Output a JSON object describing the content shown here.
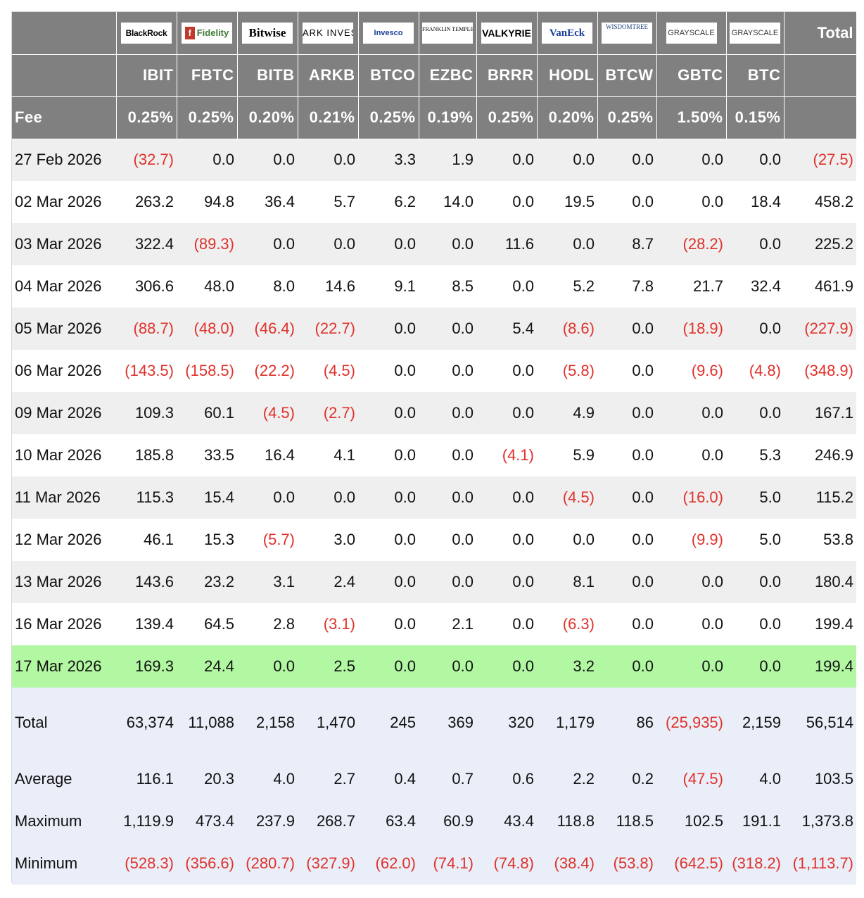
{
  "columns": [
    "IBIT",
    "FBTC",
    "BITB",
    "ARKB",
    "BTCO",
    "EZBC",
    "BRRR",
    "HODL",
    "BTCW",
    "GBTC",
    "BTC"
  ],
  "header": {
    "total_label": "Total",
    "fee_label": "Fee",
    "logos": [
      {
        "text": "BlackRock",
        "icon": "blackrock-logo"
      },
      {
        "text": "Fidelity",
        "icon": "fidelity-logo"
      },
      {
        "text": "Bitwise",
        "icon": "bitwise-logo"
      },
      {
        "text": "ARK INVEST",
        "icon": "ark-invest-logo"
      },
      {
        "text": "Invesco",
        "icon": "invesco-logo"
      },
      {
        "text": "FRANKLIN TEMPLETON",
        "icon": "franklin-templeton-logo"
      },
      {
        "text": "VALKYRIE",
        "icon": "valkyrie-logo"
      },
      {
        "text": "VanEck",
        "icon": "vaneck-logo"
      },
      {
        "text": "WISDOMTREE",
        "icon": "wisdomtree-logo"
      },
      {
        "text": "GRAYSCALE",
        "icon": "grayscale-logo"
      },
      {
        "text": "GRAYSCALE",
        "icon": "grayscale-logo"
      }
    ],
    "fees": [
      "0.25%",
      "0.25%",
      "0.20%",
      "0.21%",
      "0.25%",
      "0.19%",
      "0.25%",
      "0.20%",
      "0.25%",
      "1.50%",
      "0.15%"
    ]
  },
  "rows": [
    {
      "date": "27 Feb 2026",
      "values": [
        "(32.7)",
        "0.0",
        "0.0",
        "0.0",
        "3.3",
        "1.9",
        "0.0",
        "0.0",
        "0.0",
        "0.0",
        "0.0"
      ],
      "total": "(27.5)"
    },
    {
      "date": "02 Mar 2026",
      "values": [
        "263.2",
        "94.8",
        "36.4",
        "5.7",
        "6.2",
        "14.0",
        "0.0",
        "19.5",
        "0.0",
        "0.0",
        "18.4"
      ],
      "total": "458.2"
    },
    {
      "date": "03 Mar 2026",
      "values": [
        "322.4",
        "(89.3)",
        "0.0",
        "0.0",
        "0.0",
        "0.0",
        "11.6",
        "0.0",
        "8.7",
        "(28.2)",
        "0.0"
      ],
      "total": "225.2"
    },
    {
      "date": "04 Mar 2026",
      "values": [
        "306.6",
        "48.0",
        "8.0",
        "14.6",
        "9.1",
        "8.5",
        "0.0",
        "5.2",
        "7.8",
        "21.7",
        "32.4"
      ],
      "total": "461.9"
    },
    {
      "date": "05 Mar 2026",
      "values": [
        "(88.7)",
        "(48.0)",
        "(46.4)",
        "(22.7)",
        "0.0",
        "0.0",
        "5.4",
        "(8.6)",
        "0.0",
        "(18.9)",
        "0.0"
      ],
      "total": "(227.9)"
    },
    {
      "date": "06 Mar 2026",
      "values": [
        "(143.5)",
        "(158.5)",
        "(22.2)",
        "(4.5)",
        "0.0",
        "0.0",
        "0.0",
        "(5.8)",
        "0.0",
        "(9.6)",
        "(4.8)"
      ],
      "total": "(348.9)"
    },
    {
      "date": "09 Mar 2026",
      "values": [
        "109.3",
        "60.1",
        "(4.5)",
        "(2.7)",
        "0.0",
        "0.0",
        "0.0",
        "4.9",
        "0.0",
        "0.0",
        "0.0"
      ],
      "total": "167.1"
    },
    {
      "date": "10 Mar 2026",
      "values": [
        "185.8",
        "33.5",
        "16.4",
        "4.1",
        "0.0",
        "0.0",
        "(4.1)",
        "5.9",
        "0.0",
        "0.0",
        "5.3"
      ],
      "total": "246.9"
    },
    {
      "date": "11 Mar 2026",
      "values": [
        "115.3",
        "15.4",
        "0.0",
        "0.0",
        "0.0",
        "0.0",
        "0.0",
        "(4.5)",
        "0.0",
        "(16.0)",
        "5.0"
      ],
      "total": "115.2"
    },
    {
      "date": "12 Mar 2026",
      "values": [
        "46.1",
        "15.3",
        "(5.7)",
        "3.0",
        "0.0",
        "0.0",
        "0.0",
        "0.0",
        "0.0",
        "(9.9)",
        "5.0"
      ],
      "total": "53.8"
    },
    {
      "date": "13 Mar 2026",
      "values": [
        "143.6",
        "23.2",
        "3.1",
        "2.4",
        "0.0",
        "0.0",
        "0.0",
        "8.1",
        "0.0",
        "0.0",
        "0.0"
      ],
      "total": "180.4"
    },
    {
      "date": "16 Mar 2026",
      "values": [
        "139.4",
        "64.5",
        "2.8",
        "(3.1)",
        "0.0",
        "2.1",
        "0.0",
        "(6.3)",
        "0.0",
        "0.0",
        "0.0"
      ],
      "total": "199.4"
    },
    {
      "date": "17 Mar 2026",
      "values": [
        "169.3",
        "24.4",
        "0.0",
        "2.5",
        "0.0",
        "0.0",
        "0.0",
        "3.2",
        "0.0",
        "0.0",
        "0.0"
      ],
      "total": "199.4",
      "highlight": true
    }
  ],
  "summary": [
    {
      "label": "Total",
      "values": [
        "63,374",
        "11,088",
        "2,158",
        "1,470",
        "245",
        "369",
        "320",
        "1,179",
        "86",
        "(25,935)",
        "2,159"
      ],
      "total": "56,514"
    },
    {
      "label": "Average",
      "values": [
        "116.1",
        "20.3",
        "4.0",
        "2.7",
        "0.4",
        "0.7",
        "0.6",
        "2.2",
        "0.2",
        "(47.5)",
        "4.0"
      ],
      "total": "103.5"
    },
    {
      "label": "Maximum",
      "values": [
        "1,119.9",
        "473.4",
        "237.9",
        "268.7",
        "63.4",
        "60.9",
        "43.4",
        "118.8",
        "118.5",
        "102.5",
        "191.1"
      ],
      "total": "1,373.8"
    },
    {
      "label": "Minimum",
      "values": [
        "(528.3)",
        "(356.6)",
        "(280.7)",
        "(327.9)",
        "(62.0)",
        "(74.1)",
        "(74.8)",
        "(38.4)",
        "(53.8)",
        "(642.5)",
        "(318.2)"
      ],
      "total": "(1,113.7)"
    }
  ],
  "colors": {
    "header_bg": "#808080",
    "negative": "#e0312a",
    "highlight_row": "#b2f7a2",
    "summary_bg": "#e9eef8",
    "odd_row": "#efefef"
  }
}
